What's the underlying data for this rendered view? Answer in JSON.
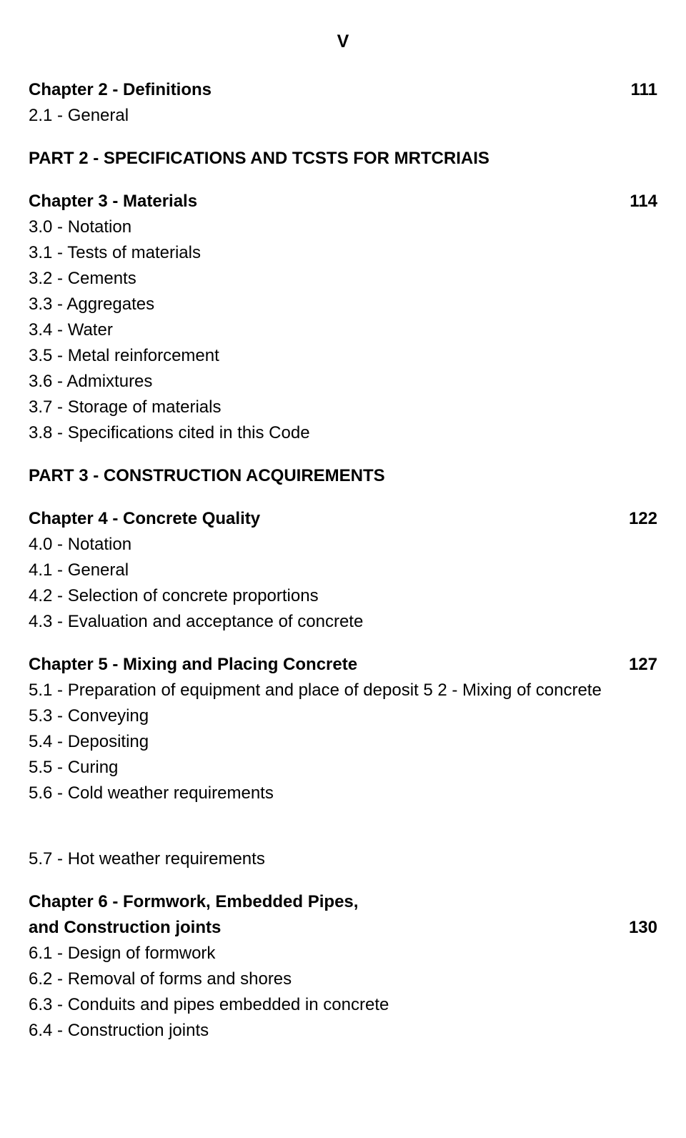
{
  "page_numeral": "V",
  "colors": {
    "text": "#000000",
    "bg": "#ffffff"
  },
  "font_size_pt": 18,
  "chapter2": {
    "title": "Chapter 2 - Definitions",
    "page": "111",
    "items": [
      "2.1  - General"
    ]
  },
  "part2": {
    "title": "PART 2 - SPECIFICATIONS AND TCSTS FOR MRTCRIAIS"
  },
  "chapter3": {
    "title": "Chapter 3 - Materials",
    "page": "114",
    "items": [
      "3.0  - Notation",
      "3.1  - Tests of materials",
      "3.2  - Cements",
      "3.3  - Aggregates",
      "3.4  - Water",
      "3.5  - Metal reinforcement",
      "3.6  - Admixtures",
      "3.7  - Storage of materials",
      "3.8  - Specifications cited in this Code"
    ]
  },
  "part3": {
    "title": "PART 3 - CONSTRUCTION ACQUIREMENTS"
  },
  "chapter4": {
    "title": "Chapter 4 - Concrete Quality",
    "page": "122",
    "items": [
      "4.0  - Notation",
      "4.1  - General",
      "4.2  - Selection of concrete proportions",
      "4.3  - Evaluation and acceptance of concrete"
    ]
  },
  "chapter5": {
    "title": "Chapter 5 - Mixing and Placing Concrete",
    "page": "127",
    "items": [
      "5.1 - Preparation of equipment and place of deposit 5 2 - Mixing of concrete",
      "5.3  - Conveying",
      "5.4  - Depositing",
      "5.5  - Curing",
      "5.6  - Cold weather requirements"
    ],
    "items_after_gap": [
      "5.7  - Hot weather requirements"
    ]
  },
  "chapter6": {
    "title_line1": "Chapter 6 - Formwork, Embedded Pipes,",
    "title_line2": "and Construction joints",
    "page": "130",
    "items": [
      "6.1  - Design of formwork",
      "6.2  - Removal of forms and shores",
      "6.3  - Conduits and pipes embedded in concrete",
      "6.4  - Construction joints"
    ]
  }
}
